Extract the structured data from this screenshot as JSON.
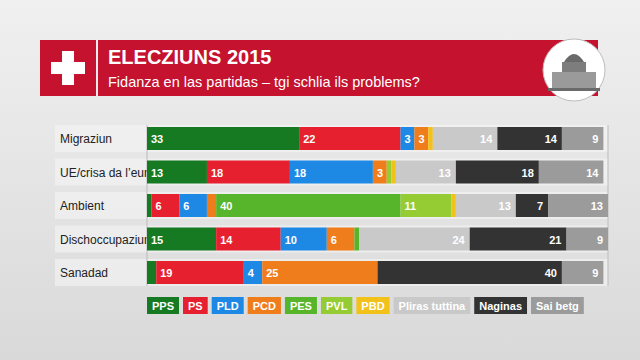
{
  "chart_data": {
    "type": "bar",
    "title": "ELECZIUNS 2015",
    "subtitle": "Fidanza en las partidas – tgi schlia ils problems?",
    "orientation": "horizontal",
    "stacked": true,
    "data_labels": true,
    "tick_labels": false,
    "grid": false,
    "legend": "bottom",
    "xlim": [
      0,
      100
    ],
    "categories": [
      "Migraziun",
      "UE/crisa da l’euro",
      "Ambient",
      "Dischoccupaziun",
      "Sanadad"
    ],
    "series": [
      {
        "name": "PPS",
        "color": "#157a22",
        "values": [
          33,
          13,
          1,
          15,
          2
        ]
      },
      {
        "name": "PS",
        "color": "#e6202f",
        "values": [
          22,
          18,
          6,
          14,
          19
        ]
      },
      {
        "name": "PLD",
        "color": "#1e88e5",
        "values": [
          3,
          18,
          6,
          10,
          4
        ]
      },
      {
        "name": "PCD",
        "color": "#f07d1b",
        "values": [
          3,
          3,
          2,
          6,
          25
        ]
      },
      {
        "name": "PES",
        "color": "#56b52a",
        "values": [
          0,
          0,
          40,
          1,
          0
        ]
      },
      {
        "name": "PVL",
        "color": "#95cc33",
        "values": [
          0,
          1,
          11,
          0,
          0
        ]
      },
      {
        "name": "PBD",
        "color": "#f2c21b",
        "values": [
          1,
          1,
          1,
          0,
          0
        ]
      },
      {
        "name": "Pliras tuttina",
        "color": "#c9c9c9",
        "values": [
          14,
          13,
          13,
          24,
          0
        ]
      },
      {
        "name": "Naginas",
        "color": "#333333",
        "values": [
          14,
          18,
          7,
          21,
          40
        ]
      },
      {
        "name": "Sai betg",
        "color": "#9b9b9b",
        "values": [
          9,
          14,
          13,
          9,
          9
        ]
      }
    ]
  }
}
